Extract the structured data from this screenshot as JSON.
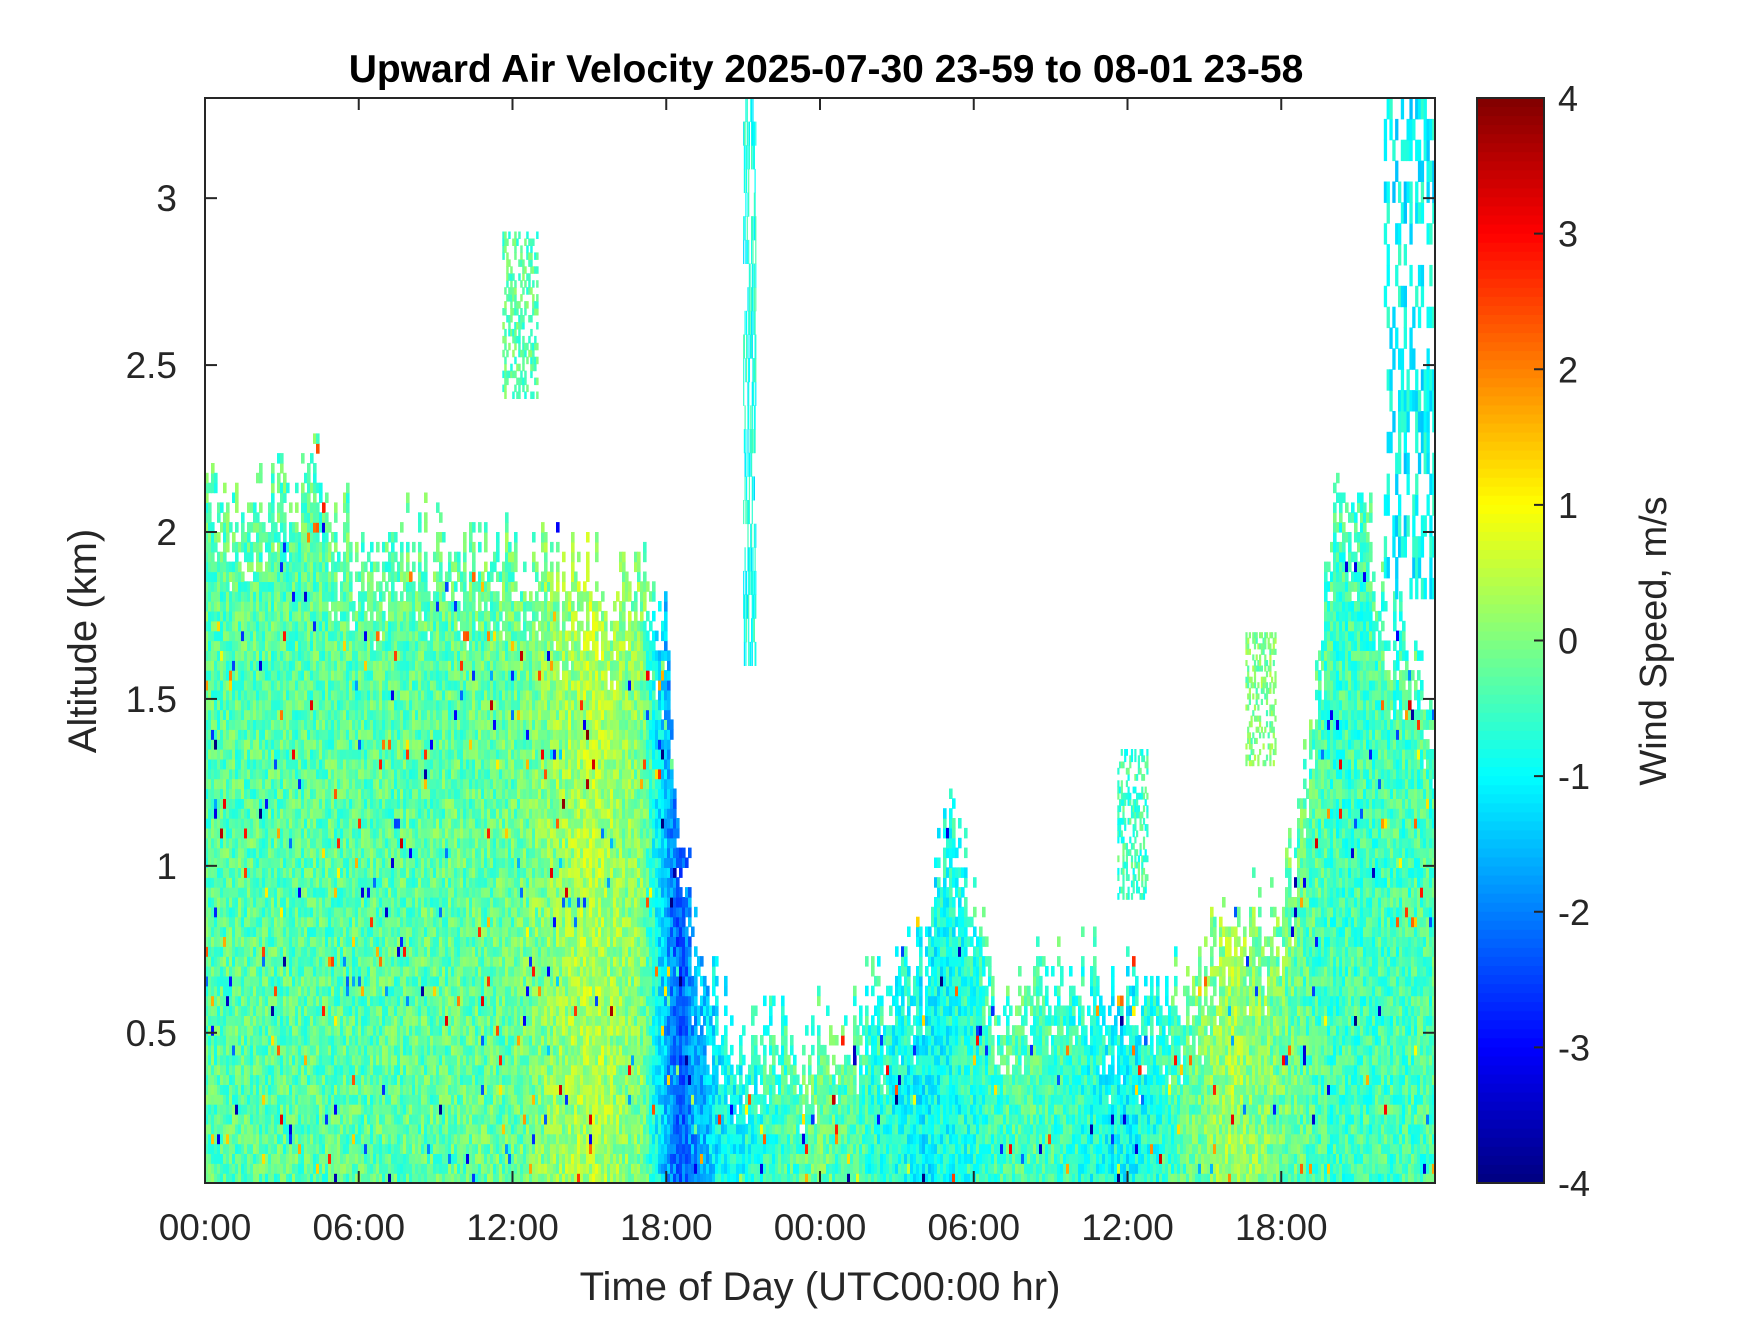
{
  "chart_data": {
    "type": "heatmap",
    "title": "Upward Air Velocity 2025-07-30 23-59 to 08-01 23-58",
    "xlabel": "Time of Day (UTC00:00 hr)",
    "ylabel": "Altitude (km)",
    "colorbar_label": "Wind Speed, m/s",
    "x_unit": "hours since first 00:00",
    "xlim": [
      0,
      48
    ],
    "ylim": [
      0.05,
      3.3
    ],
    "clim": [
      -4,
      4
    ],
    "x_ticks": [
      0,
      6,
      12,
      18,
      24,
      30,
      36,
      42
    ],
    "x_tick_labels": [
      "00:00",
      "06:00",
      "12:00",
      "18:00",
      "00:00",
      "06:00",
      "12:00",
      "18:00"
    ],
    "y_ticks": [
      0.5,
      1,
      1.5,
      2,
      2.5,
      3
    ],
    "y_tick_labels": [
      "0.5",
      "1",
      "1.5",
      "2",
      "2.5",
      "3"
    ],
    "colorbar_ticks": [
      4,
      3,
      2,
      1,
      0,
      -1,
      -2,
      -3,
      -4
    ],
    "colorbar_tick_labels": [
      "4",
      "3",
      "2",
      "1",
      "0",
      "-1",
      "-2",
      "-3",
      "-4"
    ],
    "colormap": "jet",
    "grid": false,
    "data_top_km": [
      [
        0,
        2.15
      ],
      [
        2,
        2.1
      ],
      [
        4,
        2.2
      ],
      [
        6,
        2.0
      ],
      [
        8,
        2.0
      ],
      [
        10,
        1.95
      ],
      [
        12,
        1.95
      ],
      [
        14,
        1.9
      ],
      [
        16,
        1.9
      ],
      [
        17,
        1.9
      ],
      [
        18,
        1.8
      ],
      [
        18.4,
        1.2
      ],
      [
        19,
        0.9
      ],
      [
        20,
        0.55
      ],
      [
        21,
        0.45
      ],
      [
        22,
        0.6
      ],
      [
        24,
        0.5
      ],
      [
        26,
        0.65
      ],
      [
        28,
        0.75
      ],
      [
        29,
        1.2
      ],
      [
        30,
        0.9
      ],
      [
        31,
        0.55
      ],
      [
        32,
        0.7
      ],
      [
        34,
        0.7
      ],
      [
        36,
        0.65
      ],
      [
        38,
        0.65
      ],
      [
        40,
        0.85
      ],
      [
        42,
        0.9
      ],
      [
        43,
        1.4
      ],
      [
        44,
        2.1
      ],
      [
        45,
        2.2
      ],
      [
        46,
        1.8
      ],
      [
        48,
        1.5
      ]
    ],
    "typical_w_ms": [
      [
        0,
        -0.3
      ],
      [
        6,
        -0.3
      ],
      [
        12,
        -0.2
      ],
      [
        15,
        0.4
      ],
      [
        17,
        0.0
      ],
      [
        18.4,
        -2.3
      ],
      [
        20,
        -1.0
      ],
      [
        24,
        -0.2
      ],
      [
        28,
        -1.0
      ],
      [
        32,
        -0.3
      ],
      [
        36,
        -1.0
      ],
      [
        40,
        0.3
      ],
      [
        44,
        -0.5
      ],
      [
        48,
        -0.4
      ]
    ],
    "patches": [
      {
        "t_range": [
          21,
          21.5
        ],
        "alt_range": [
          1.6,
          3.3
        ],
        "w_ms": -0.8
      },
      {
        "t_range": [
          11.6,
          13.0
        ],
        "alt_range": [
          2.4,
          2.9
        ],
        "w_ms": -0.3
      },
      {
        "t_range": [
          40.6,
          41.8
        ],
        "alt_range": [
          1.3,
          1.7
        ],
        "w_ms": 0.0
      },
      {
        "t_range": [
          35.6,
          36.8
        ],
        "alt_range": [
          0.9,
          1.35
        ],
        "w_ms": -0.5
      },
      {
        "t_range": [
          46,
          48
        ],
        "alt_range": [
          1.8,
          3.3
        ],
        "w_ms": -1.0
      }
    ]
  }
}
